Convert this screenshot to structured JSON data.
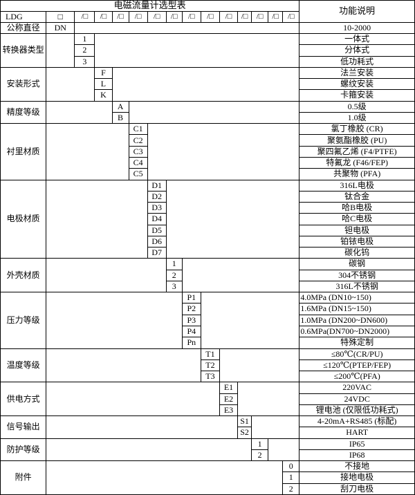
{
  "title": "电磁流量计选型表",
  "function_header": "功能说明",
  "model_row": {
    "prefix": "LDG",
    "first_box": "□",
    "slot_box": "/□",
    "slot_count": 13
  },
  "groups": [
    {
      "label": "公称直径",
      "col": 1,
      "rows": [
        {
          "code": "DN",
          "func": "10-2000"
        }
      ]
    },
    {
      "label": "转换器类型",
      "col": 2,
      "rows": [
        {
          "code": "1",
          "func": "一体式"
        },
        {
          "code": "2",
          "func": "分体式"
        },
        {
          "code": "3",
          "func": "低功耗式"
        }
      ]
    },
    {
      "label": "安装形式",
      "col": 3,
      "rows": [
        {
          "code": "F",
          "func": "法兰安装"
        },
        {
          "code": "L",
          "func": "螺纹安装"
        },
        {
          "code": "K",
          "func": "卡箍安装"
        }
      ]
    },
    {
      "label": "精度等级",
      "col": 4,
      "rows": [
        {
          "code": "A",
          "func": "0.5级"
        },
        {
          "code": "B",
          "func": "1.0级"
        }
      ]
    },
    {
      "label": "衬里材质",
      "col": 5,
      "rows": [
        {
          "code": "C1",
          "func": "氯丁橡胶 (CR)"
        },
        {
          "code": "C2",
          "func": "聚氨酯橡胶 (PU)"
        },
        {
          "code": "C3",
          "func": "聚四氟乙烯 (F4/PTFE)"
        },
        {
          "code": "C4",
          "func": "特氟龙 (F46/FEP)"
        },
        {
          "code": "C5",
          "func": "共聚物 (PFA)"
        }
      ]
    },
    {
      "label": "电极材质",
      "col": 6,
      "rows": [
        {
          "code": "D1",
          "func": "316L电极"
        },
        {
          "code": "D2",
          "func": "钛合金"
        },
        {
          "code": "D3",
          "func": "哈B电极"
        },
        {
          "code": "D4",
          "func": "哈C电极"
        },
        {
          "code": "D5",
          "func": "钽电极"
        },
        {
          "code": "D6",
          "func": "铂铱电极"
        },
        {
          "code": "D7",
          "func": "碳化钨"
        }
      ]
    },
    {
      "label": "外壳材质",
      "col": 7,
      "rows": [
        {
          "code": "1",
          "func": "碳钢"
        },
        {
          "code": "2",
          "func": "304不锈钢"
        },
        {
          "code": "3",
          "func": "316L不锈钢"
        }
      ]
    },
    {
      "label": "压力等级",
      "col": 8,
      "rows": [
        {
          "code": "P1",
          "func": "4.0MPa (DN10~150)",
          "align": "left"
        },
        {
          "code": "P2",
          "func": "1.6MPa (DN15~150)",
          "align": "left"
        },
        {
          "code": "P3",
          "func": "1.0MPa (DN200~DN600)",
          "align": "left"
        },
        {
          "code": "P4",
          "func": "0.6MPa(DN700~DN2000)",
          "align": "left"
        },
        {
          "code": "Pn",
          "func": "特殊定制"
        }
      ]
    },
    {
      "label": "温度等级",
      "col": 9,
      "rows": [
        {
          "code": "T1",
          "func": "≤80℃(CR/PU)"
        },
        {
          "code": "T2",
          "func": "≤120℃(PTEP/FEP)"
        },
        {
          "code": "T3",
          "func": "≤200℃(PFA)"
        }
      ]
    },
    {
      "label": "供电方式",
      "col": 10,
      "rows": [
        {
          "code": "E1",
          "func": "220VAC"
        },
        {
          "code": "E2",
          "func": "24VDC"
        },
        {
          "code": "E3",
          "func": "锂电池 (仅限低功耗式)"
        }
      ]
    },
    {
      "label": "信号输出",
      "col": 11,
      "rows": [
        {
          "code": "S1",
          "func": "4-20mA+RS485 (标配)"
        },
        {
          "code": "S2",
          "func": "HART"
        }
      ]
    },
    {
      "label": "防护等级",
      "col": 12,
      "rows": [
        {
          "code": "1",
          "func": "IP65"
        },
        {
          "code": "2",
          "func": "IP68"
        }
      ]
    },
    {
      "label": "附件",
      "col": 14,
      "rows": [
        {
          "code": "0",
          "func": "不接地"
        },
        {
          "code": "1",
          "func": "接地电极"
        },
        {
          "code": "2",
          "func": "刮刀电极"
        }
      ]
    }
  ]
}
